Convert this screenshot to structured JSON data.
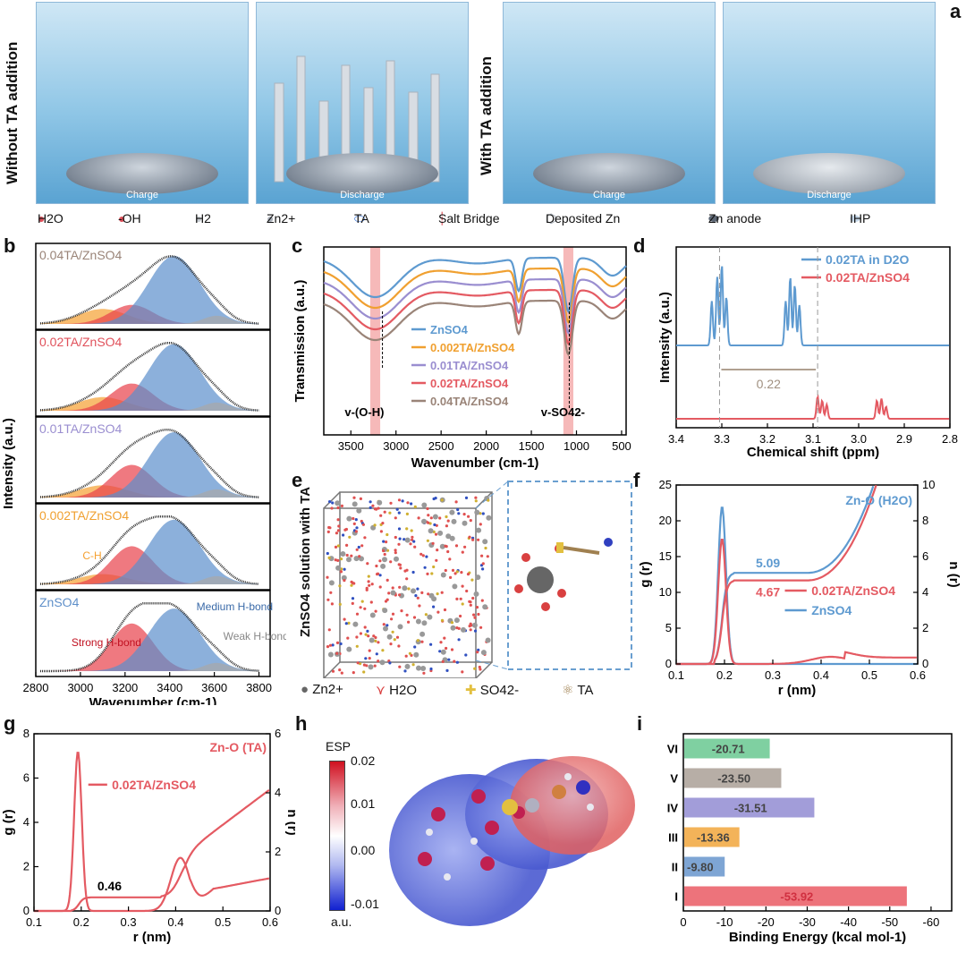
{
  "panel_labels": {
    "a": "a",
    "b": "b",
    "c": "c",
    "d": "d",
    "e": "e",
    "f": "f",
    "g": "g",
    "h": "h",
    "i": "i"
  },
  "panel_a": {
    "without": "Without TA addition",
    "with": "With TA addition",
    "scene_labels": [
      "Charge",
      "Discharge",
      "Charge",
      "Discharge"
    ],
    "legend": [
      "H2O",
      "-OH",
      "H2",
      "Zn2+",
      "TA",
      "Salt Bridge",
      "Deposited Zn",
      "Zn anode",
      "IHP"
    ],
    "legend_colors": {
      "h2o": "#e0505a",
      "zn": "#b9bec6",
      "ta_red": "#e33",
      "ta_blue": "#2c6bd6",
      "anode": "#5b6573",
      "ihp": "#dbe8f3"
    }
  },
  "chart_data": [
    {
      "id": "b",
      "type": "area",
      "xlabel": "Wavenumber (cm-1)",
      "ylabel": "Intensity (a.u.)",
      "xlim": [
        2800,
        3850
      ],
      "xticks": [
        2800,
        3000,
        3200,
        3400,
        3600,
        3800
      ],
      "series": [
        {
          "name": "0.04TA/ZnSO4",
          "label_color": "#9a8478",
          "strong": 0.28,
          "medium": 1.0,
          "ch": 0.22,
          "weak": 0.12
        },
        {
          "name": "0.02TA/ZnSO4",
          "label_color": "#e0505a",
          "strong": 0.4,
          "medium": 0.98,
          "ch": 0.2,
          "weak": 0.12
        },
        {
          "name": "0.01TA/ZnSO4",
          "label_color": "#9a8ed0",
          "strong": 0.48,
          "medium": 0.96,
          "ch": 0.18,
          "weak": 0.12
        },
        {
          "name": "0.002TA/ZnSO4",
          "label_color": "#f0a030",
          "strong": 0.56,
          "medium": 0.95,
          "ch": 0.15,
          "weak": 0.12
        },
        {
          "name": "ZnSO4",
          "label_color": "#5e8fc9",
          "strong": 0.7,
          "medium": 0.92,
          "ch": 0.0,
          "weak": 0.12
        }
      ],
      "annotations": {
        "ch": "C-H",
        "strong": "Strong H-bond",
        "medium": "Medium H-bond",
        "weak": "Weak H-bond"
      },
      "colors": {
        "strong": "#e8404a",
        "medium": "#5b8fcc",
        "ch": "#f5a030",
        "weak": "#a8a8a8"
      }
    },
    {
      "id": "c",
      "type": "line",
      "xlabel": "Wavenumber (cm-1)",
      "ylabel": "Transmission (a.u.)",
      "xlim": [
        3800,
        450
      ],
      "xticks": [
        3500,
        3000,
        2500,
        2000,
        1500,
        1000,
        500
      ],
      "series": [
        {
          "name": "ZnSO4",
          "color": "#5e9ad0",
          "offset": 0
        },
        {
          "name": "0.002TA/ZnSO4",
          "color": "#f0a030",
          "offset": 1
        },
        {
          "name": "0.01TA/ZnSO4",
          "color": "#9a8ed0",
          "offset": 2
        },
        {
          "name": "0.02TA/ZnSO4",
          "color": "#e45a62",
          "offset": 3
        },
        {
          "name": "0.04TA/ZnSO4",
          "color": "#9a8478",
          "offset": 4
        }
      ],
      "bands": [
        {
          "center": 3230,
          "width": 110
        },
        {
          "center": 1090,
          "width": 110
        }
      ],
      "annotations": {
        "oh": "v-(O-H)",
        "so4": "v-SO42-"
      }
    },
    {
      "id": "d",
      "type": "line",
      "xlabel": "Chemical shift (ppm)",
      "ylabel": "Intensity (a.u.)",
      "xlim": [
        3.4,
        2.8
      ],
      "xticks": [
        3.4,
        3.3,
        3.2,
        3.1,
        3.0,
        2.9,
        2.8
      ],
      "series": [
        {
          "name": "0.02TA in D2O",
          "color": "#5e9ad0",
          "peaks": [
            [
              3.322,
              0.55
            ],
            [
              3.31,
              0.85
            ],
            [
              3.3,
              1.0
            ],
            [
              3.29,
              0.6
            ],
            [
              3.16,
              0.55
            ],
            [
              3.15,
              0.85
            ],
            [
              3.14,
              0.75
            ],
            [
              3.13,
              0.5
            ]
          ]
        },
        {
          "name": "0.02TA/ZnSO4",
          "color": "#e45a62",
          "peaks": [
            [
              3.09,
              0.55
            ],
            [
              3.08,
              0.45
            ],
            [
              3.07,
              0.35
            ],
            [
              2.96,
              0.45
            ],
            [
              2.95,
              0.5
            ],
            [
              2.94,
              0.3
            ]
          ]
        }
      ],
      "shift_label": "0.22",
      "dashes": [
        3.305,
        3.09
      ]
    },
    {
      "id": "f",
      "type": "line",
      "xlabel": "r (nm)",
      "ylabel": "g (r)",
      "y2label": "n (r)",
      "xlim": [
        0.1,
        0.6
      ],
      "ylim": [
        0,
        25
      ],
      "y2lim": [
        0,
        10
      ],
      "xticks": [
        0.1,
        0.2,
        0.3,
        0.4,
        0.5,
        0.6
      ],
      "yticks": [
        0,
        5,
        10,
        15,
        20,
        25
      ],
      "y2ticks": [
        0,
        2,
        4,
        6,
        8,
        10
      ],
      "series": [
        {
          "name": "ZnSO4",
          "color": "#5e9ad0",
          "peak": 22,
          "plateau": 5.09
        },
        {
          "name": "0.02TA/ZnSO4",
          "color": "#e45a62",
          "peak": 17.5,
          "plateau": 4.67
        }
      ],
      "title": "Zn-O (H2O)",
      "values_shown": [
        "5.09",
        "4.67"
      ]
    },
    {
      "id": "g",
      "type": "line",
      "xlabel": "r (nm)",
      "ylabel": "g (r)",
      "y2label": "n (r)",
      "xlim": [
        0.1,
        0.6
      ],
      "ylim": [
        0,
        8
      ],
      "y2lim": [
        0,
        6
      ],
      "xticks": [
        0.1,
        0.2,
        0.3,
        0.4,
        0.5,
        0.6
      ],
      "yticks": [
        0,
        2,
        4,
        6,
        8
      ],
      "y2ticks": [
        0,
        2,
        4,
        6
      ],
      "series": [
        {
          "name": "0.02TA/ZnSO4",
          "color": "#e45a62",
          "peak": 7.2,
          "plateau": 0.46
        }
      ],
      "title": "Zn-O (TA)",
      "values_shown": [
        "0.46"
      ]
    },
    {
      "id": "i",
      "type": "bar",
      "xlabel": "Binding Energy (kcal mol-1)",
      "xlim": [
        0,
        -65
      ],
      "xticks": [
        0,
        -10,
        -20,
        -30,
        -40,
        -50,
        -60
      ],
      "categories": [
        "VI",
        "V",
        "IV",
        "III",
        "II",
        "I"
      ],
      "values": [
        -20.71,
        -23.5,
        -31.51,
        -13.36,
        -9.8,
        -53.92
      ],
      "labels": [
        "-20.71",
        "-23.50",
        "-31.51",
        "-13.36",
        "-9.80",
        "-53.92"
      ],
      "colors": [
        "#5fc489",
        "#a59a90",
        "#8b85d0",
        "#f0a030",
        "#5e8fc9",
        "#e8505a"
      ]
    }
  ],
  "panel_e": {
    "side_label": "ZnSO4 solution with TA",
    "legend": [
      "Zn2+",
      "H2O",
      "SO42-",
      "TA"
    ]
  },
  "panel_h": {
    "title": "ESP",
    "unit": "a.u.",
    "ticks": [
      "0.02",
      "0.01",
      "0.00",
      "-0.01"
    ]
  }
}
